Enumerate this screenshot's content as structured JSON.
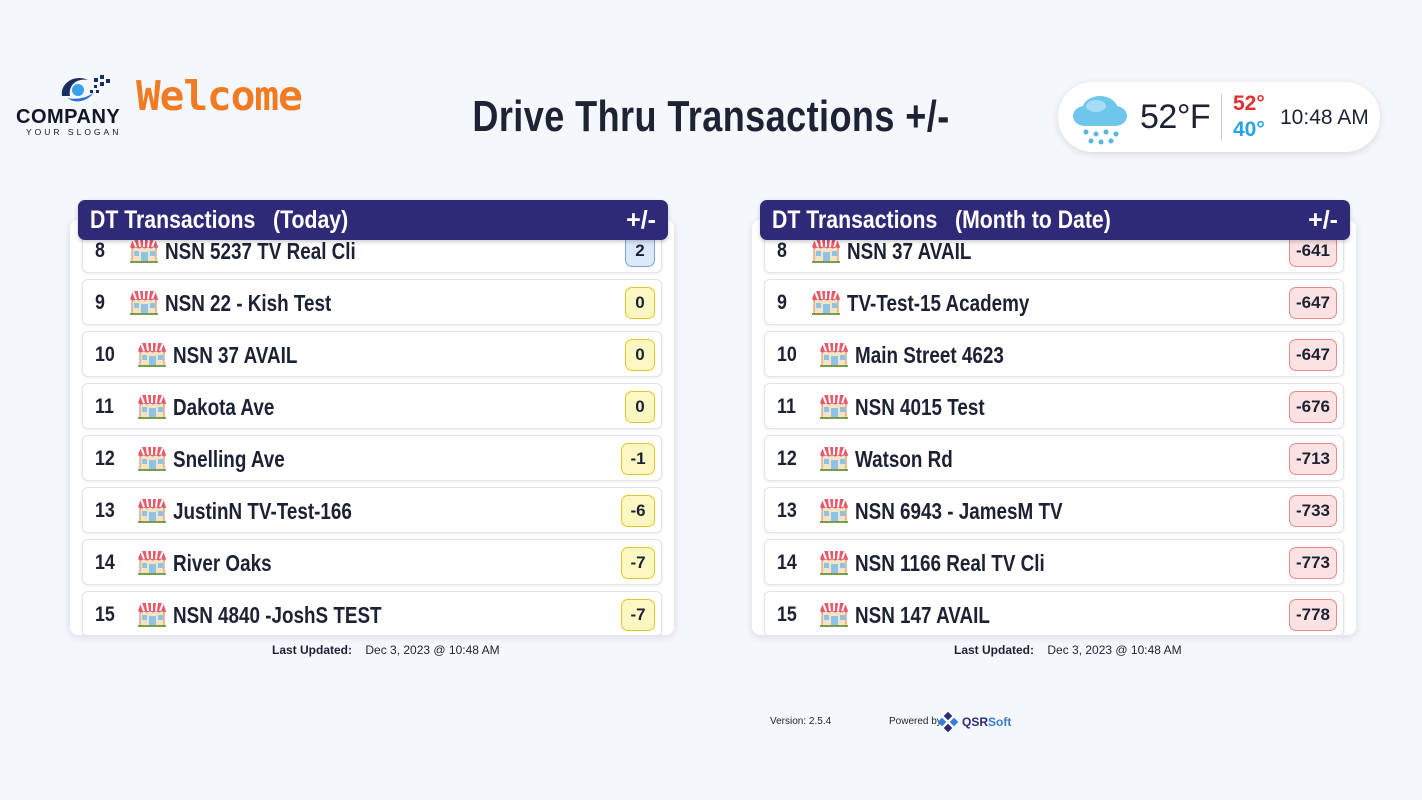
{
  "brand": {
    "company_name": "COMPANY",
    "slogan": "YOUR SLOGAN",
    "welcome": "Welcome",
    "logo_icon": "company-logo-icon",
    "accent_color": "#f07b22"
  },
  "page": {
    "title": "Drive Thru Transactions +/-"
  },
  "weather": {
    "icon": "rain-cloud-icon",
    "temperature": "52°F",
    "high": "52°",
    "low": "40°",
    "time": "10:48 AM",
    "high_color": "#e03030",
    "low_color": "#24a4e0"
  },
  "today": {
    "title": "DT Transactions   (Today)",
    "delta_header": "+/-",
    "header_color": "#2f2a78",
    "rows": [
      {
        "rank": "8",
        "name": "NSN 5237 TV Real Cli",
        "delta": "2",
        "badge": "blue"
      },
      {
        "rank": "9",
        "name": "NSN 22 - Kish Test",
        "delta": "0",
        "badge": "yellow"
      },
      {
        "rank": "10",
        "name": "NSN 37 AVAIL",
        "delta": "0",
        "badge": "yellow"
      },
      {
        "rank": "11",
        "name": "Dakota Ave",
        "delta": "0",
        "badge": "yellow"
      },
      {
        "rank": "12",
        "name": "Snelling Ave",
        "delta": "-1",
        "badge": "yellow"
      },
      {
        "rank": "13",
        "name": "JustinN TV-Test-166",
        "delta": "-6",
        "badge": "yellow"
      },
      {
        "rank": "14",
        "name": "River Oaks",
        "delta": "-7",
        "badge": "yellow"
      },
      {
        "rank": "15",
        "name": "NSN 4840 -JoshS TEST",
        "delta": "-7",
        "badge": "yellow"
      }
    ],
    "updated_label": "Last Updated:",
    "updated_value": "Dec 3, 2023 @ 10:48 AM"
  },
  "month": {
    "title": "DT Transactions   (Month to Date)",
    "delta_header": "+/-",
    "rows": [
      {
        "rank": "8",
        "name": "NSN 37 AVAIL",
        "delta": "-641",
        "badge": "red"
      },
      {
        "rank": "9",
        "name": "TV-Test-15 Academy",
        "delta": "-647",
        "badge": "red"
      },
      {
        "rank": "10",
        "name": "Main Street 4623",
        "delta": "-647",
        "badge": "red"
      },
      {
        "rank": "11",
        "name": "NSN 4015 Test",
        "delta": "-676",
        "badge": "red"
      },
      {
        "rank": "12",
        "name": "Watson Rd",
        "delta": "-713",
        "badge": "red"
      },
      {
        "rank": "13",
        "name": "NSN 6943 - JamesM TV",
        "delta": "-733",
        "badge": "red"
      },
      {
        "rank": "14",
        "name": "NSN 1166 Real TV Cli",
        "delta": "-773",
        "badge": "red"
      },
      {
        "rank": "15",
        "name": "NSN 147 AVAIL",
        "delta": "-778",
        "badge": "red"
      }
    ],
    "updated_label": "Last Updated:",
    "updated_value": "Dec 3, 2023 @ 10:48 AM"
  },
  "footer": {
    "version": "Version: 2.5.4",
    "powered_by": "Powered by",
    "vendor_a": "QSR",
    "vendor_b": "Soft",
    "vendor_icon": "qsrsoft-logo-icon"
  }
}
